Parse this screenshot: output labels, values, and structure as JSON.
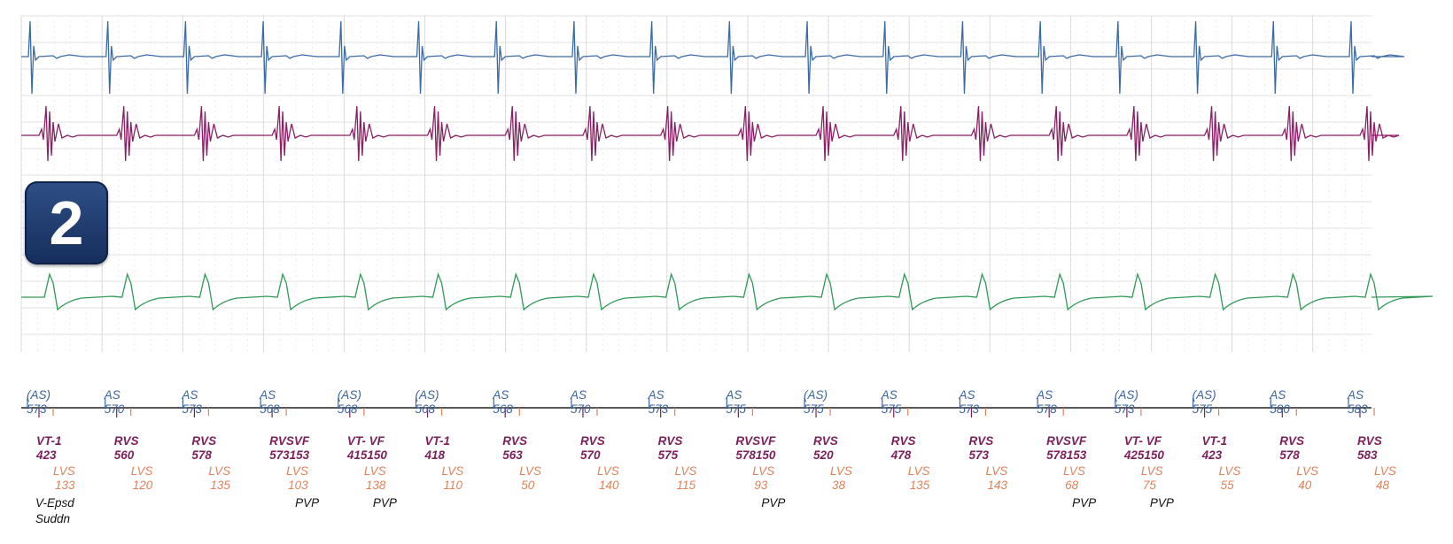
{
  "badge": {
    "label": "2"
  },
  "colors": {
    "atrial": "#3a6aa8",
    "rv": "#8a1f63",
    "shock": "#2e9a55",
    "as_text": "#3a63a3",
    "rv_text": "#7c1f5a",
    "lv_text": "#e0825a",
    "event_text": "#111111",
    "grid": "#d6d6d6"
  },
  "atrial_markers": [
    {
      "label": "(AS)",
      "value": "573"
    },
    {
      "label": "AS",
      "value": "570"
    },
    {
      "label": "AS",
      "value": "573"
    },
    {
      "label": "AS",
      "value": "568"
    },
    {
      "label": "(AS)",
      "value": "568"
    },
    {
      "label": "(AS)",
      "value": "568"
    },
    {
      "label": "AS",
      "value": "568"
    },
    {
      "label": "AS",
      "value": "570"
    },
    {
      "label": "AS",
      "value": "573"
    },
    {
      "label": "AS",
      "value": "575"
    },
    {
      "label": "(AS)",
      "value": "575"
    },
    {
      "label": "AS",
      "value": "575"
    },
    {
      "label": "AS",
      "value": "573"
    },
    {
      "label": "AS",
      "value": "578"
    },
    {
      "label": "(AS)",
      "value": "573"
    },
    {
      "label": "(AS)",
      "value": "575"
    },
    {
      "label": "AS",
      "value": "580"
    },
    {
      "label": "AS",
      "value": "583"
    }
  ],
  "rv_markers": [
    {
      "label": "VT-1",
      "value": "423"
    },
    {
      "label": "RVS",
      "value": "560"
    },
    {
      "label": "RVS",
      "value": "578"
    },
    {
      "label": "RVSVF",
      "value": "573153"
    },
    {
      "label": "VT- VF",
      "value": "415150"
    },
    {
      "label": "VT-1",
      "value": "418"
    },
    {
      "label": "RVS",
      "value": "563"
    },
    {
      "label": "RVS",
      "value": "570"
    },
    {
      "label": "RVS",
      "value": "575"
    },
    {
      "label": "RVSVF",
      "value": "578150"
    },
    {
      "label": "RVS",
      "value": "520"
    },
    {
      "label": "RVS",
      "value": "478"
    },
    {
      "label": "RVS",
      "value": "573"
    },
    {
      "label": "RVSVF",
      "value": "578153"
    },
    {
      "label": "VT- VF",
      "value": "425150"
    },
    {
      "label": "VT-1",
      "value": "423"
    },
    {
      "label": "RVS",
      "value": "578"
    },
    {
      "label": "RVS",
      "value": "583"
    }
  ],
  "lv_markers": [
    {
      "label": "LVS",
      "value": "133"
    },
    {
      "label": "LVS",
      "value": "120"
    },
    {
      "label": "LVS",
      "value": "135"
    },
    {
      "label": "LVS",
      "value": "103"
    },
    {
      "label": "LVS",
      "value": "138"
    },
    {
      "label": "LVS",
      "value": "110"
    },
    {
      "label": "LVS",
      "value": "50"
    },
    {
      "label": "LVS",
      "value": "140"
    },
    {
      "label": "LVS",
      "value": "115"
    },
    {
      "label": "LVS",
      "value": "93"
    },
    {
      "label": "LVS",
      "value": "38"
    },
    {
      "label": "LVS",
      "value": "135"
    },
    {
      "label": "LVS",
      "value": "143"
    },
    {
      "label": "LVS",
      "value": "68"
    },
    {
      "label": "LVS",
      "value": "75"
    },
    {
      "label": "LVS",
      "value": "55"
    },
    {
      "label": "LVS",
      "value": "40"
    },
    {
      "label": "LVS",
      "value": "48"
    }
  ],
  "events": [
    {
      "beat": 0,
      "lines": [
        "V-Epsd",
        "Suddn"
      ]
    },
    {
      "beat": 3,
      "lines": [
        "PVP"
      ]
    },
    {
      "beat": 4,
      "lines": [
        "PVP"
      ]
    },
    {
      "beat": 9,
      "lines": [
        "PVP"
      ]
    },
    {
      "beat": 13,
      "lines": [
        "PVP"
      ]
    },
    {
      "beat": 14,
      "lines": [
        "PVP"
      ]
    }
  ]
}
